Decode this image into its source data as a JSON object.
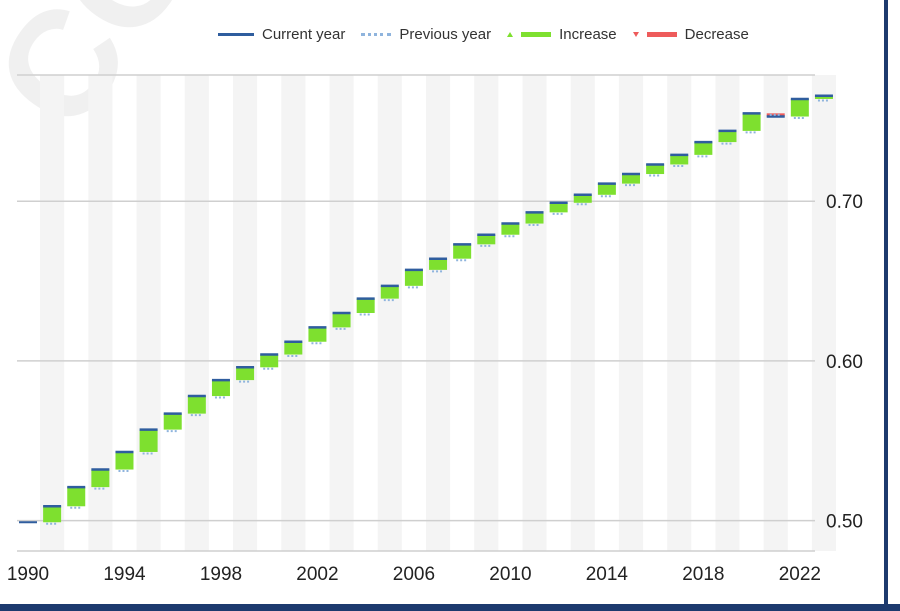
{
  "watermark": "CONFIDENTIAL",
  "legend": {
    "current_year": "Current year",
    "previous_year": "Previous year",
    "increase": "Increase",
    "decrease": "Decrease"
  },
  "colors": {
    "current_year": "#2f5d9e",
    "previous_year": "#8fb4dd",
    "increase": "#7ee02f",
    "decrease": "#ee5b5b",
    "grid": "#cfcfcf",
    "band": "#f4f4f4"
  },
  "chart_data": {
    "type": "waterfall",
    "title": "",
    "xlabel": "",
    "ylabel": "",
    "x_ticks": [
      "1990",
      "1994",
      "1998",
      "2002",
      "2006",
      "2010",
      "2014",
      "2018",
      "2022"
    ],
    "y_ticks": [
      "0.50",
      "0.60",
      "0.70"
    ],
    "y_tick_values": [
      0.5,
      0.6,
      0.7
    ],
    "ylim": [
      0.481,
      0.779
    ],
    "y_axis_position": "right",
    "legend_position": "top-right",
    "grid": true,
    "years": [
      1990,
      1991,
      1992,
      1993,
      1994,
      1995,
      1996,
      1997,
      1998,
      1999,
      2000,
      2001,
      2002,
      2003,
      2004,
      2005,
      2006,
      2007,
      2008,
      2009,
      2010,
      2011,
      2012,
      2013,
      2014,
      2015,
      2016,
      2017,
      2018,
      2019,
      2020,
      2021,
      2022,
      2023
    ],
    "values": [
      0.499,
      0.509,
      0.521,
      0.532,
      0.543,
      0.557,
      0.567,
      0.578,
      0.588,
      0.596,
      0.604,
      0.612,
      0.621,
      0.63,
      0.639,
      0.647,
      0.657,
      0.664,
      0.673,
      0.679,
      0.686,
      0.693,
      0.699,
      0.704,
      0.711,
      0.717,
      0.723,
      0.729,
      0.737,
      0.744,
      0.755,
      0.753,
      0.764,
      0.766
    ]
  }
}
